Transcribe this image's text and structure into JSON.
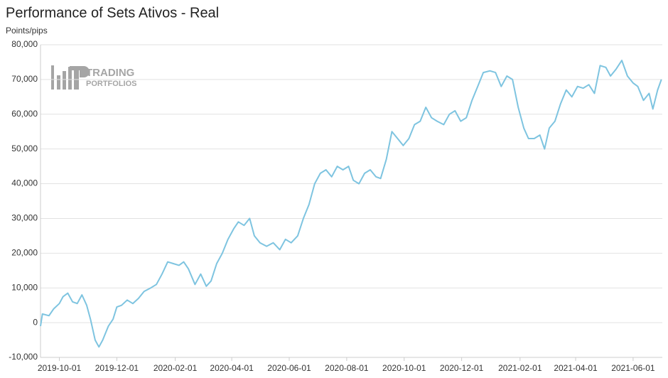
{
  "chart_data": {
    "type": "line",
    "title": "Performance of Sets Ativos - Real",
    "y_label": "Points/pips",
    "watermark": [
      "TRADING",
      "PORTFOLIOS"
    ],
    "grid": true,
    "xlim": [
      "2019-09-11",
      "2021-07-02"
    ],
    "xticks": [
      "2019-10-01",
      "2019-12-01",
      "2020-02-01",
      "2020-04-01",
      "2020-06-01",
      "2020-08-01",
      "2020-10-01",
      "2020-12-01",
      "2021-02-01",
      "2021-04-01",
      "2021-06-01"
    ],
    "ylim": [
      -10000,
      80000
    ],
    "yticks": [
      {
        "value": -10000,
        "label": "-10,000"
      },
      0,
      {
        "value": 10000,
        "label": "10,000"
      },
      {
        "value": 20000,
        "label": "20,000"
      },
      {
        "value": 30000,
        "label": "30,000"
      },
      {
        "value": 40000,
        "label": "40,000"
      },
      {
        "value": 50000,
        "label": "50,000"
      },
      {
        "value": 60000,
        "label": "60,000"
      },
      {
        "value": 70000,
        "label": "70,000"
      },
      {
        "value": 80000,
        "label": "80,000"
      }
    ],
    "x": [
      "2019-09-11",
      "2019-09-13",
      "2019-09-20",
      "2019-09-25",
      "2019-10-01",
      "2019-10-05",
      "2019-10-10",
      "2019-10-15",
      "2019-10-20",
      "2019-10-25",
      "2019-10-30",
      "2019-11-03",
      "2019-11-08",
      "2019-11-12",
      "2019-11-16",
      "2019-11-22",
      "2019-11-27",
      "2019-12-01",
      "2019-12-06",
      "2019-12-12",
      "2019-12-18",
      "2019-12-24",
      "2019-12-30",
      "2020-01-06",
      "2020-01-12",
      "2020-01-18",
      "2020-01-24",
      "2020-01-30",
      "2020-02-05",
      "2020-02-10",
      "2020-02-15",
      "2020-02-22",
      "2020-02-28",
      "2020-03-05",
      "2020-03-10",
      "2020-03-16",
      "2020-03-22",
      "2020-03-28",
      "2020-04-03",
      "2020-04-08",
      "2020-04-14",
      "2020-04-20",
      "2020-04-25",
      "2020-05-01",
      "2020-05-08",
      "2020-05-15",
      "2020-05-22",
      "2020-05-28",
      "2020-06-03",
      "2020-06-10",
      "2020-06-16",
      "2020-06-22",
      "2020-06-28",
      "2020-07-04",
      "2020-07-10",
      "2020-07-16",
      "2020-07-22",
      "2020-07-28",
      "2020-08-03",
      "2020-08-08",
      "2020-08-14",
      "2020-08-20",
      "2020-08-26",
      "2020-09-01",
      "2020-09-06",
      "2020-09-12",
      "2020-09-18",
      "2020-09-24",
      "2020-09-30",
      "2020-10-06",
      "2020-10-12",
      "2020-10-18",
      "2020-10-24",
      "2020-10-30",
      "2020-11-05",
      "2020-11-12",
      "2020-11-18",
      "2020-11-24",
      "2020-11-30",
      "2020-12-06",
      "2020-12-12",
      "2020-12-18",
      "2020-12-24",
      "2020-12-31",
      "2021-01-06",
      "2021-01-12",
      "2021-01-18",
      "2021-01-24",
      "2021-01-30",
      "2021-02-05",
      "2021-02-10",
      "2021-02-16",
      "2021-02-22",
      "2021-02-27",
      "2021-03-04",
      "2021-03-10",
      "2021-03-16",
      "2021-03-22",
      "2021-03-28",
      "2021-04-03",
      "2021-04-09",
      "2021-04-15",
      "2021-04-21",
      "2021-04-27",
      "2021-05-03",
      "2021-05-08",
      "2021-05-14",
      "2021-05-20",
      "2021-05-26",
      "2021-06-01",
      "2021-06-06",
      "2021-06-12",
      "2021-06-18",
      "2021-06-22",
      "2021-06-27",
      "2021-07-01"
    ],
    "series": [
      {
        "name": "Sets Ativos - Real",
        "color": "#7ec4e0",
        "values": [
          -1000,
          2500,
          2000,
          4000,
          5500,
          7500,
          8500,
          6000,
          5500,
          8000,
          5000,
          1000,
          -5000,
          -7000,
          -5000,
          -1000,
          1000,
          4500,
          5000,
          6500,
          5500,
          7000,
          9000,
          10000,
          11000,
          14000,
          17500,
          17000,
          16500,
          17500,
          15500,
          11000,
          14000,
          10500,
          12000,
          17000,
          20000,
          24000,
          27000,
          29000,
          28000,
          30000,
          25000,
          23000,
          22000,
          23000,
          21000,
          24000,
          23000,
          25000,
          30000,
          34000,
          40000,
          43000,
          44000,
          42000,
          45000,
          44000,
          45000,
          41000,
          40000,
          43000,
          44000,
          42000,
          41500,
          47000,
          55000,
          53000,
          51000,
          53000,
          57000,
          58000,
          62000,
          59000,
          58000,
          57000,
          60000,
          61000,
          58000,
          59000,
          64000,
          68000,
          72000,
          72500,
          72000,
          68000,
          71000,
          70000,
          62000,
          56000,
          53000,
          53000,
          54000,
          50000,
          56000,
          58000,
          63000,
          67000,
          65000,
          68000,
          67500,
          68500,
          66000,
          74000,
          73500,
          71000,
          73000,
          75500,
          71000,
          69000,
          68000,
          64000,
          66000,
          61500,
          67000,
          70000
        ]
      }
    ]
  }
}
